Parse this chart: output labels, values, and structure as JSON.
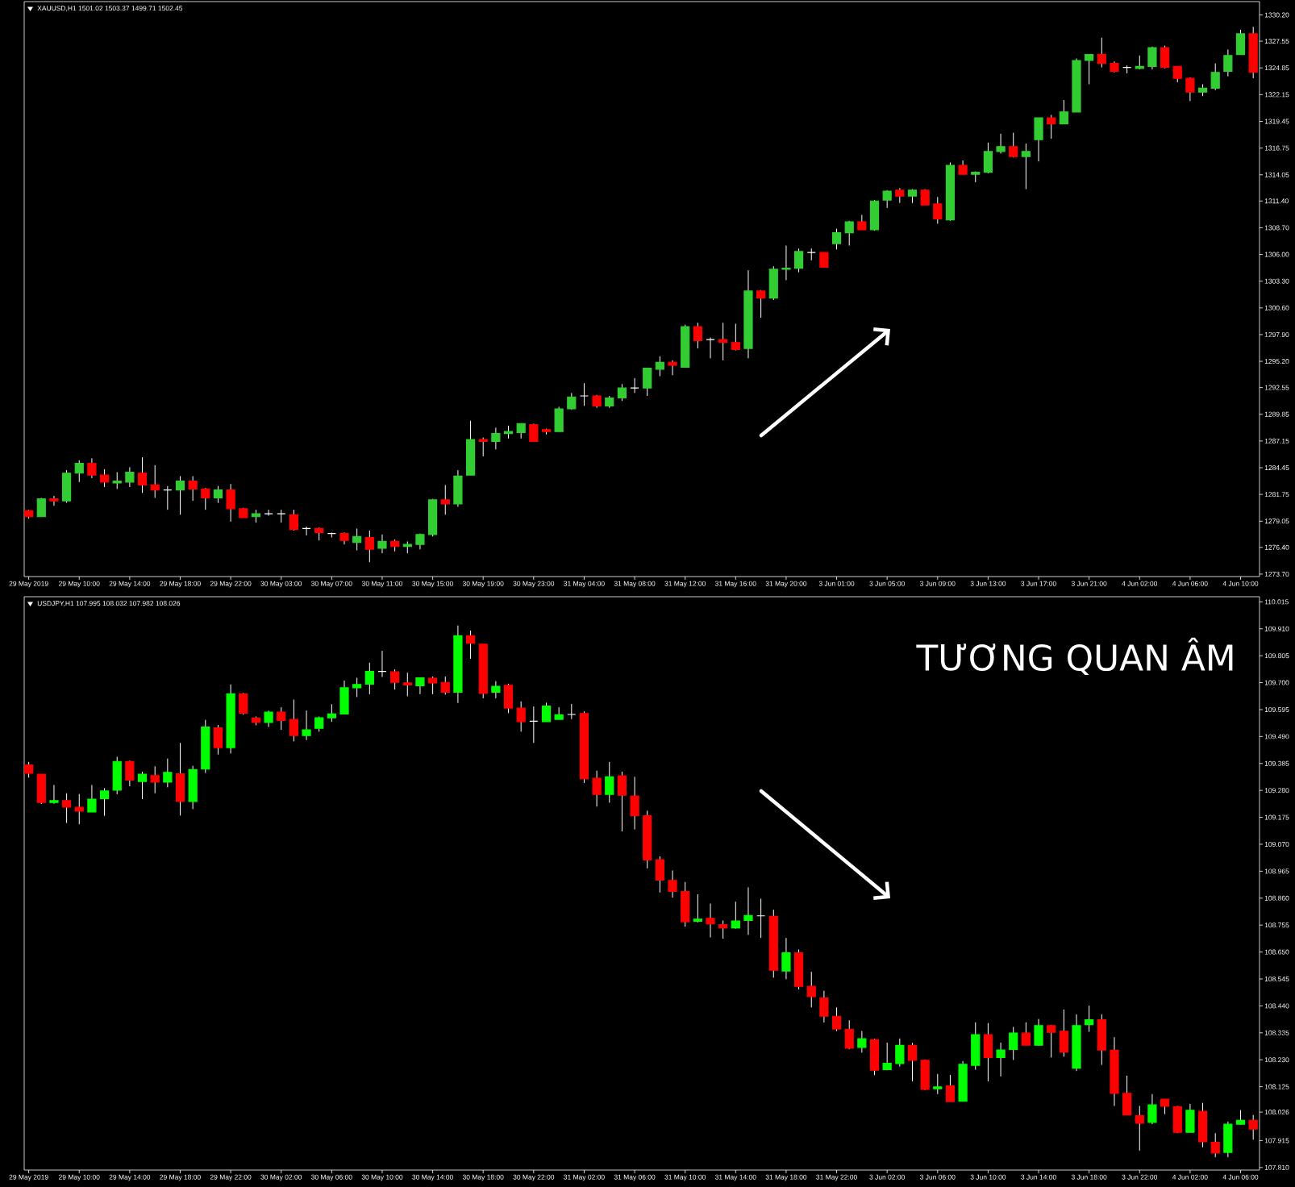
{
  "chart_data": [
    {
      "type": "candlestick",
      "title": "XAUUSD,H1 1501.02 1503.37 1499.71 1502.45",
      "categories": [
        "29 May 2019",
        null,
        null,
        null,
        "29 May 10:00",
        null,
        null,
        null,
        "29 May 14:00",
        null,
        null,
        null,
        "29 May 18:00",
        null,
        null,
        null,
        "29 May 22:00",
        null,
        null,
        null,
        "30 May 03:00",
        null,
        null,
        null,
        "30 May 07:00",
        null,
        null,
        null,
        "30 May 11:00",
        null,
        null,
        null,
        "30 May 15:00",
        null,
        null,
        null,
        "30 May 19:00",
        null,
        null,
        null,
        "30 May 23:00",
        null,
        null,
        null,
        "31 May 04:00",
        null,
        null,
        null,
        "31 May 08:00",
        null,
        null,
        null,
        "31 May 12:00",
        null,
        null,
        null,
        "31 May 16:00",
        null,
        null,
        null,
        "31 May 20:00",
        null,
        null,
        null,
        "3 Jun 01:00",
        null,
        null,
        null,
        "3 Jun 05:00",
        null,
        null,
        null,
        "3 Jun 09:00",
        null,
        null,
        null,
        "3 Jun 13:00",
        null,
        null,
        null,
        "3 Jun 17:00",
        null,
        null,
        null,
        "3 Jun 21:00",
        null,
        null,
        null,
        "4 Jun 02:00",
        null,
        null,
        null,
        "4 Jun 06:00",
        null,
        null,
        null,
        "4 Jun 10:00",
        null
      ],
      "ohlc": [
        [
          1280.1,
          1280.2,
          1279.3,
          1279.5
        ],
        [
          1279.5,
          1281.4,
          1279.5,
          1281.3
        ],
        [
          1281.3,
          1281.6,
          1280.6,
          1281.1
        ],
        [
          1281.1,
          1284.2,
          1280.9,
          1283.9
        ],
        [
          1283.9,
          1285.2,
          1283.0,
          1284.9
        ],
        [
          1284.9,
          1285.4,
          1283.4,
          1283.7
        ],
        [
          1283.7,
          1284.3,
          1282.5,
          1283.0
        ],
        [
          1282.9,
          1284.0,
          1282.3,
          1283.1
        ],
        [
          1283.0,
          1284.5,
          1282.5,
          1284.0
        ],
        [
          1283.9,
          1285.5,
          1281.9,
          1282.7
        ],
        [
          1282.7,
          1284.7,
          1281.4,
          1282.2
        ],
        [
          1282.2,
          1282.6,
          1280.2,
          1282.2
        ],
        [
          1282.2,
          1283.6,
          1279.7,
          1283.1
        ],
        [
          1283.1,
          1283.6,
          1281.1,
          1282.3
        ],
        [
          1282.3,
          1282.4,
          1280.2,
          1281.4
        ],
        [
          1281.4,
          1282.6,
          1280.9,
          1282.2
        ],
        [
          1282.2,
          1282.8,
          1279.0,
          1280.3
        ],
        [
          1280.3,
          1280.4,
          1279.4,
          1279.4
        ],
        [
          1279.5,
          1280.2,
          1278.9,
          1279.8
        ],
        [
          1279.8,
          1280.2,
          1279.6,
          1279.8
        ],
        [
          1279.8,
          1280.2,
          1278.9,
          1279.8
        ],
        [
          1279.7,
          1280.2,
          1278.1,
          1278.2
        ],
        [
          1278.3,
          1278.5,
          1277.6,
          1278.3
        ],
        [
          1278.3,
          1278.4,
          1277.1,
          1277.9
        ],
        [
          1277.8,
          1277.9,
          1277.4,
          1277.8
        ],
        [
          1277.8,
          1277.9,
          1276.7,
          1277.1
        ],
        [
          1276.9,
          1278.3,
          1276.1,
          1277.5
        ],
        [
          1277.4,
          1278.1,
          1274.9,
          1276.2
        ],
        [
          1276.3,
          1277.7,
          1275.8,
          1277.0
        ],
        [
          1277.0,
          1277.2,
          1276.0,
          1276.5
        ],
        [
          1276.5,
          1277.0,
          1275.8,
          1276.7
        ],
        [
          1276.7,
          1277.8,
          1276.2,
          1277.7
        ],
        [
          1277.7,
          1281.3,
          1277.5,
          1281.2
        ],
        [
          1281.2,
          1282.7,
          1279.7,
          1280.8
        ],
        [
          1280.8,
          1284.2,
          1280.5,
          1283.6
        ],
        [
          1283.7,
          1289.2,
          1283.7,
          1287.3
        ],
        [
          1287.3,
          1287.5,
          1285.6,
          1287.1
        ],
        [
          1287.1,
          1288.5,
          1286.3,
          1287.9
        ],
        [
          1287.9,
          1288.7,
          1287.4,
          1288.1
        ],
        [
          1288.0,
          1288.9,
          1287.4,
          1288.9
        ],
        [
          1288.8,
          1288.9,
          1287.1,
          1287.1
        ],
        [
          1288.3,
          1288.4,
          1287.8,
          1288.1
        ],
        [
          1288.1,
          1290.6,
          1288.1,
          1290.4
        ],
        [
          1290.4,
          1292.0,
          1290.3,
          1291.6
        ],
        [
          1291.7,
          1293.0,
          1290.7,
          1291.7
        ],
        [
          1291.7,
          1291.8,
          1290.5,
          1290.7
        ],
        [
          1290.7,
          1291.7,
          1290.5,
          1291.5
        ],
        [
          1291.5,
          1292.9,
          1291.2,
          1292.5
        ],
        [
          1292.5,
          1293.5,
          1292.0,
          1292.5
        ],
        [
          1292.5,
          1294.5,
          1291.7,
          1294.5
        ],
        [
          1294.4,
          1295.7,
          1293.7,
          1295.1
        ],
        [
          1295.1,
          1295.3,
          1293.8,
          1294.8
        ],
        [
          1294.6,
          1298.9,
          1294.6,
          1298.7
        ],
        [
          1298.7,
          1299.1,
          1296.5,
          1297.3
        ],
        [
          1297.4,
          1297.6,
          1295.5,
          1297.4
        ],
        [
          1297.4,
          1299.1,
          1295.3,
          1297.1
        ],
        [
          1297.1,
          1299.0,
          1296.3,
          1296.4
        ],
        [
          1296.5,
          1304.4,
          1295.5,
          1302.3
        ],
        [
          1302.3,
          1302.4,
          1299.6,
          1301.6
        ],
        [
          1301.6,
          1304.8,
          1301.4,
          1304.5
        ],
        [
          1304.5,
          1306.9,
          1303.4,
          1304.6
        ],
        [
          1304.6,
          1306.6,
          1304.2,
          1306.3
        ],
        [
          1306.2,
          1306.6,
          1305.4,
          1306.2
        ],
        [
          1306.2,
          1306.2,
          1304.7,
          1304.7
        ],
        [
          1307.1,
          1308.6,
          1306.5,
          1308.2
        ],
        [
          1308.2,
          1309.4,
          1306.9,
          1309.3
        ],
        [
          1309.3,
          1310.0,
          1308.5,
          1308.5
        ],
        [
          1308.5,
          1311.5,
          1308.4,
          1311.4
        ],
        [
          1311.5,
          1312.5,
          1310.7,
          1312.4
        ],
        [
          1312.5,
          1312.7,
          1311.2,
          1311.9
        ],
        [
          1311.9,
          1312.6,
          1311.2,
          1312.5
        ],
        [
          1312.5,
          1312.6,
          1311.0,
          1311.0
        ],
        [
          1311.1,
          1311.8,
          1309.1,
          1309.6
        ],
        [
          1309.5,
          1315.3,
          1309.4,
          1315.0
        ],
        [
          1315.0,
          1315.5,
          1314.1,
          1314.1
        ],
        [
          1314.1,
          1314.4,
          1313.3,
          1314.3
        ],
        [
          1314.3,
          1317.3,
          1314.2,
          1316.4
        ],
        [
          1316.4,
          1318.2,
          1316.2,
          1316.9
        ],
        [
          1316.9,
          1318.3,
          1315.8,
          1315.9
        ],
        [
          1315.9,
          1317.2,
          1312.6,
          1316.4
        ],
        [
          1317.6,
          1319.8,
          1315.4,
          1319.8
        ],
        [
          1319.8,
          1320.1,
          1317.7,
          1319.2
        ],
        [
          1319.2,
          1321.6,
          1319.2,
          1320.4
        ],
        [
          1320.4,
          1325.8,
          1320.4,
          1325.6
        ],
        [
          1325.6,
          1326.2,
          1323.2,
          1326.2
        ],
        [
          1326.2,
          1327.9,
          1324.9,
          1325.3
        ],
        [
          1325.3,
          1325.5,
          1324.4,
          1324.5
        ],
        [
          1324.9,
          1325.1,
          1324.3,
          1324.9
        ],
        [
          1324.8,
          1326.1,
          1324.7,
          1325.0
        ],
        [
          1325.0,
          1327.0,
          1324.7,
          1326.9
        ],
        [
          1326.9,
          1327.1,
          1324.8,
          1324.9
        ],
        [
          1325.0,
          1325.0,
          1323.4,
          1323.8
        ],
        [
          1323.8,
          1323.9,
          1321.5,
          1322.4
        ],
        [
          1322.4,
          1323.2,
          1322.0,
          1322.8
        ],
        [
          1322.8,
          1325.3,
          1322.6,
          1324.4
        ],
        [
          1324.5,
          1326.7,
          1324.0,
          1326.1
        ],
        [
          1326.2,
          1328.7,
          1326.2,
          1328.3
        ],
        [
          1328.3,
          1329.0,
          1323.8,
          1324.4
        ]
      ],
      "colors": [
        "#ff0000",
        "#32cd32",
        "#ff0000",
        "#32cd32",
        "#32cd32",
        "#ff0000",
        "#ff0000",
        "#32cd32",
        "#32cd32",
        "#ff0000",
        "#ff0000",
        "#ffffff",
        "#32cd32",
        "#ff0000",
        "#ff0000",
        "#32cd32",
        "#ff0000",
        "#ff0000",
        "#32cd32",
        "#ffffff",
        "#ffffff",
        "#ff0000",
        "#ffffff",
        "#ff0000",
        "#ffffff",
        "#ff0000",
        "#32cd32",
        "#ff0000",
        "#32cd32",
        "#ff0000",
        "#32cd32",
        "#32cd32",
        "#32cd32",
        "#ff0000",
        "#32cd32",
        "#32cd32",
        "#ff0000",
        "#32cd32",
        "#32cd32",
        "#32cd32",
        "#ff0000",
        "#ff0000",
        "#32cd32",
        "#32cd32",
        "#ffffff",
        "#ff0000",
        "#32cd32",
        "#32cd32",
        "#ffffff",
        "#32cd32",
        "#32cd32",
        "#ff0000",
        "#32cd32",
        "#ff0000",
        "#ffffff",
        "#ff0000",
        "#ff0000",
        "#32cd32",
        "#ff0000",
        "#32cd32",
        "#32cd32",
        "#32cd32",
        "#ffffff",
        "#ff0000",
        "#32cd32",
        "#32cd32",
        "#ff0000",
        "#32cd32",
        "#32cd32",
        "#ff0000",
        "#32cd32",
        "#ff0000",
        "#ff0000",
        "#32cd32",
        "#ff0000",
        "#32cd32",
        "#32cd32",
        "#32cd32",
        "#ff0000",
        "#32cd32",
        "#32cd32",
        "#ff0000",
        "#32cd32",
        "#32cd32",
        "#32cd32",
        "#ff0000",
        "#ff0000",
        "#ffffff",
        "#32cd32",
        "#32cd32",
        "#ff0000",
        "#ff0000",
        "#ff0000",
        "#32cd32",
        "#32cd32",
        "#32cd32",
        "#32cd32",
        "#ff0000"
      ],
      "ylim": [
        1273.45,
        1331.55
      ],
      "yticks": [
        {
          "value": 1273.7,
          "label": "1273.70"
        },
        {
          "value": 1276.4,
          "label": "1276.40"
        },
        {
          "value": 1279.05,
          "label": "1279.05"
        },
        {
          "value": 1281.75,
          "label": "1281.75"
        },
        {
          "value": 1284.45,
          "label": "1284.45"
        },
        {
          "value": 1287.15,
          "label": "1287.15"
        },
        {
          "value": 1289.85,
          "label": "1289.85"
        },
        {
          "value": 1292.55,
          "label": "1292.55"
        },
        {
          "value": 1295.2,
          "label": "1295.20"
        },
        {
          "value": 1297.9,
          "label": "1297.90"
        },
        {
          "value": 1300.6,
          "label": "1300.60"
        },
        {
          "value": 1303.3,
          "label": "1303.30"
        },
        {
          "value": 1306.0,
          "label": "1306.00"
        },
        {
          "value": 1308.7,
          "label": "1308.70"
        },
        {
          "value": 1311.4,
          "label": "1311.40"
        },
        {
          "value": 1314.05,
          "label": "1314.05"
        },
        {
          "value": 1316.75,
          "label": "1316.75"
        },
        {
          "value": 1319.45,
          "label": "1319.45"
        },
        {
          "value": 1322.15,
          "label": "1322.15"
        },
        {
          "value": 1324.85,
          "label": "1324.85"
        },
        {
          "value": 1327.55,
          "label": "1327.55"
        },
        {
          "value": 1330.2,
          "label": "1330.20"
        }
      ]
    },
    {
      "type": "candlestick",
      "title": "USDJPY,H1 107.995 108.032 107.982 108.026",
      "categories": [
        "29 May 2019",
        null,
        null,
        null,
        "29 May 10:00",
        null,
        null,
        null,
        "29 May 14:00",
        null,
        null,
        null,
        "29 May 18:00",
        null,
        null,
        null,
        "29 May 22:00",
        null,
        null,
        null,
        "30 May 02:00",
        null,
        null,
        null,
        "30 May 06:00",
        null,
        null,
        null,
        "30 May 10:00",
        null,
        null,
        null,
        "30 May 14:00",
        null,
        null,
        null,
        "30 May 18:00",
        null,
        null,
        null,
        "30 May 22:00",
        null,
        null,
        null,
        "31 May 02:00",
        null,
        null,
        null,
        "31 May 06:00",
        null,
        null,
        null,
        "31 May 10:00",
        null,
        null,
        null,
        "31 May 14:00",
        null,
        null,
        null,
        "31 May 18:00",
        null,
        null,
        null,
        "31 May 22:00",
        null,
        null,
        null,
        "3 Jun 02:00",
        null,
        null,
        null,
        "3 Jun 06:00",
        null,
        null,
        null,
        "3 Jun 10:00",
        null,
        null,
        null,
        "3 Jun 14:00",
        null,
        null,
        null,
        "3 Jun 18:00",
        null,
        null,
        null,
        "3 Jun 22:00",
        null,
        null,
        null,
        "4 Jun 02:00",
        null,
        null,
        null,
        "4 Jun 06:00",
        null
      ],
      "ohlc": [
        [
          109.379,
          109.391,
          109.33,
          109.347
        ],
        [
          109.343,
          109.343,
          109.227,
          109.233
        ],
        [
          109.233,
          109.301,
          109.228,
          109.24
        ],
        [
          109.24,
          109.269,
          109.153,
          109.215
        ],
        [
          109.214,
          109.266,
          109.148,
          109.199
        ],
        [
          109.196,
          109.301,
          109.196,
          109.246
        ],
        [
          109.248,
          109.289,
          109.181,
          109.278
        ],
        [
          109.281,
          109.411,
          109.265,
          109.393
        ],
        [
          109.393,
          109.396,
          109.296,
          109.32
        ],
        [
          109.315,
          109.353,
          109.246,
          109.343
        ],
        [
          109.338,
          109.374,
          109.269,
          109.312
        ],
        [
          109.312,
          109.404,
          109.292,
          109.35
        ],
        [
          109.345,
          109.465,
          109.182,
          109.237
        ],
        [
          109.237,
          109.376,
          109.207,
          109.361
        ],
        [
          109.363,
          109.555,
          109.348,
          109.527
        ],
        [
          109.524,
          109.535,
          109.42,
          109.447
        ],
        [
          109.447,
          109.693,
          109.424,
          109.657
        ],
        [
          109.657,
          109.66,
          109.575,
          109.581
        ],
        [
          109.562,
          109.568,
          109.534,
          109.545
        ],
        [
          109.545,
          109.591,
          109.527,
          109.585
        ],
        [
          109.585,
          109.604,
          109.516,
          109.553
        ],
        [
          109.557,
          109.634,
          109.471,
          109.494
        ],
        [
          109.494,
          109.591,
          109.476,
          109.516
        ],
        [
          109.522,
          109.568,
          109.509,
          109.563
        ],
        [
          109.563,
          109.616,
          109.547,
          109.578
        ],
        [
          109.578,
          109.708,
          109.578,
          109.68
        ],
        [
          109.68,
          109.719,
          109.644,
          109.693
        ],
        [
          109.694,
          109.778,
          109.655,
          109.744
        ],
        [
          109.744,
          109.824,
          109.722,
          109.744
        ],
        [
          109.742,
          109.752,
          109.673,
          109.701
        ],
        [
          109.699,
          109.739,
          109.647,
          109.691
        ],
        [
          109.688,
          109.719,
          109.655,
          109.719
        ],
        [
          109.717,
          109.724,
          109.655,
          109.699
        ],
        [
          109.701,
          109.724,
          109.653,
          109.663
        ],
        [
          109.663,
          109.923,
          109.621,
          109.883
        ],
        [
          109.883,
          109.903,
          109.793,
          109.854
        ],
        [
          109.85,
          109.85,
          109.639,
          109.658
        ],
        [
          109.663,
          109.706,
          109.639,
          109.686
        ],
        [
          109.69,
          109.696,
          109.581,
          109.601
        ],
        [
          109.601,
          109.627,
          109.509,
          109.548
        ],
        [
          109.55,
          109.607,
          109.465,
          109.55
        ],
        [
          109.548,
          109.622,
          109.548,
          109.609
        ],
        [
          109.557,
          109.604,
          109.557,
          109.575
        ],
        [
          109.576,
          109.617,
          109.558,
          109.576
        ],
        [
          109.58,
          109.588,
          109.309,
          109.325
        ],
        [
          109.327,
          109.357,
          109.217,
          109.264
        ],
        [
          109.264,
          109.391,
          109.232,
          109.333
        ],
        [
          109.337,
          109.353,
          109.12,
          109.261
        ],
        [
          109.258,
          109.333,
          109.128,
          109.181
        ],
        [
          109.181,
          109.201,
          108.976,
          109.009
        ],
        [
          109.01,
          109.023,
          108.882,
          108.93
        ],
        [
          108.929,
          108.968,
          108.862,
          108.886
        ],
        [
          108.886,
          108.923,
          108.749,
          108.768
        ],
        [
          108.77,
          108.875,
          108.765,
          108.778
        ],
        [
          108.781,
          108.839,
          108.707,
          108.76
        ],
        [
          108.757,
          108.773,
          108.702,
          108.744
        ],
        [
          108.744,
          108.846,
          108.741,
          108.771
        ],
        [
          108.773,
          108.902,
          108.717,
          108.792
        ],
        [
          108.791,
          108.858,
          108.705,
          108.791
        ],
        [
          108.789,
          108.815,
          108.55,
          108.579
        ],
        [
          108.576,
          108.705,
          108.544,
          108.647
        ],
        [
          108.647,
          108.66,
          108.504,
          108.516
        ],
        [
          108.516,
          108.573,
          108.434,
          108.476
        ],
        [
          108.471,
          108.499,
          108.375,
          108.4
        ],
        [
          108.399,
          108.434,
          108.342,
          108.35
        ],
        [
          108.349,
          108.384,
          108.271,
          108.275
        ],
        [
          108.278,
          108.342,
          108.258,
          108.312
        ],
        [
          108.308,
          108.312,
          108.17,
          108.189
        ],
        [
          108.192,
          108.297,
          108.189,
          108.216
        ],
        [
          108.215,
          108.313,
          108.204,
          108.286
        ],
        [
          108.286,
          108.296,
          108.146,
          108.228
        ],
        [
          108.228,
          108.231,
          108.112,
          108.115
        ],
        [
          108.117,
          108.175,
          108.096,
          108.124
        ],
        [
          108.128,
          108.171,
          108.067,
          108.067
        ],
        [
          108.068,
          108.225,
          108.067,
          108.212
        ],
        [
          108.208,
          108.376,
          108.191,
          108.328
        ],
        [
          108.328,
          108.373,
          108.146,
          108.239
        ],
        [
          108.239,
          108.297,
          108.165,
          108.268
        ],
        [
          108.27,
          108.358,
          108.229,
          108.334
        ],
        [
          108.334,
          108.376,
          108.287,
          108.287
        ],
        [
          108.287,
          108.389,
          108.284,
          108.363
        ],
        [
          108.363,
          108.366,
          108.239,
          108.337
        ],
        [
          108.341,
          108.426,
          108.242,
          108.26
        ],
        [
          108.197,
          108.407,
          108.186,
          108.363
        ],
        [
          108.367,
          108.441,
          108.339,
          108.386
        ],
        [
          108.386,
          108.407,
          108.21,
          108.268
        ],
        [
          108.267,
          108.318,
          108.05,
          108.099
        ],
        [
          108.099,
          108.168,
          108.015,
          108.015
        ],
        [
          108.012,
          108.05,
          107.876,
          107.983
        ],
        [
          107.986,
          108.096,
          107.979,
          108.054
        ],
        [
          108.076,
          108.076,
          108.018,
          108.049
        ],
        [
          108.047,
          108.05,
          107.944,
          107.947
        ],
        [
          107.947,
          108.058,
          107.947,
          108.033
        ],
        [
          108.029,
          108.062,
          107.889,
          107.91
        ],
        [
          107.908,
          107.944,
          107.85,
          107.866
        ],
        [
          107.869,
          107.989,
          107.85,
          107.979
        ],
        [
          107.979,
          108.034,
          107.976,
          107.994
        ],
        [
          107.994,
          108.015,
          107.918,
          107.96
        ]
      ],
      "colors": [
        "#ff0000",
        "#ff0000",
        "#00ff00",
        "#ff0000",
        "#ff0000",
        "#00ff00",
        "#00ff00",
        "#00ff00",
        "#ff0000",
        "#00ff00",
        "#ff0000",
        "#00ff00",
        "#ff0000",
        "#00ff00",
        "#00ff00",
        "#ff0000",
        "#00ff00",
        "#ff0000",
        "#ff0000",
        "#00ff00",
        "#ff0000",
        "#ff0000",
        "#00ff00",
        "#00ff00",
        "#00ff00",
        "#00ff00",
        "#00ff00",
        "#00ff00",
        "#ffffff",
        "#ff0000",
        "#ff0000",
        "#00ff00",
        "#ff0000",
        "#ff0000",
        "#00ff00",
        "#ff0000",
        "#ff0000",
        "#00ff00",
        "#ff0000",
        "#ff0000",
        "#ffffff",
        "#00ff00",
        "#00ff00",
        "#ffffff",
        "#ff0000",
        "#ff0000",
        "#00ff00",
        "#ff0000",
        "#ff0000",
        "#ff0000",
        "#ff0000",
        "#ff0000",
        "#ff0000",
        "#00ff00",
        "#ff0000",
        "#ff0000",
        "#00ff00",
        "#00ff00",
        "#ffffff",
        "#ff0000",
        "#00ff00",
        "#ff0000",
        "#ff0000",
        "#ff0000",
        "#ff0000",
        "#ff0000",
        "#00ff00",
        "#ff0000",
        "#00ff00",
        "#00ff00",
        "#ff0000",
        "#ff0000",
        "#00ff00",
        "#ff0000",
        "#00ff00",
        "#00ff00",
        "#ff0000",
        "#00ff00",
        "#00ff00",
        "#ff0000",
        "#00ff00",
        "#ff0000",
        "#ff0000",
        "#00ff00",
        "#00ff00",
        "#ff0000",
        "#ff0000",
        "#ff0000",
        "#ff0000",
        "#00ff00",
        "#ff0000",
        "#ff0000",
        "#00ff00",
        "#ff0000",
        "#ff0000",
        "#00ff00",
        "#00ff00",
        "#ff0000"
      ],
      "ylim": [
        107.8,
        110.035
      ],
      "yticks": [
        {
          "value": 107.81,
          "label": "107.810"
        },
        {
          "value": 107.915,
          "label": "107.915"
        },
        {
          "value": 108.026,
          "label": "108.026"
        },
        {
          "value": 108.125,
          "label": "108.125"
        },
        {
          "value": 108.23,
          "label": "108.230"
        },
        {
          "value": 108.335,
          "label": "108.335"
        },
        {
          "value": 108.44,
          "label": "108.440"
        },
        {
          "value": 108.545,
          "label": "108.545"
        },
        {
          "value": 108.65,
          "label": "108.650"
        },
        {
          "value": 108.755,
          "label": "108.755"
        },
        {
          "value": 108.86,
          "label": "108.860"
        },
        {
          "value": 108.965,
          "label": "108.965"
        },
        {
          "value": 109.07,
          "label": "109.070"
        },
        {
          "value": 109.175,
          "label": "109.175"
        },
        {
          "value": 109.28,
          "label": "109.280"
        },
        {
          "value": 109.385,
          "label": "109.385"
        },
        {
          "value": 109.49,
          "label": "109.490"
        },
        {
          "value": 109.595,
          "label": "109.595"
        },
        {
          "value": 109.7,
          "label": "109.700"
        },
        {
          "value": 109.805,
          "label": "109.805"
        },
        {
          "value": 109.91,
          "label": "109.910"
        },
        {
          "value": 110.015,
          "label": "110.015"
        }
      ],
      "annotations": [
        "TƯƠNG QUAN ÂM"
      ]
    }
  ]
}
